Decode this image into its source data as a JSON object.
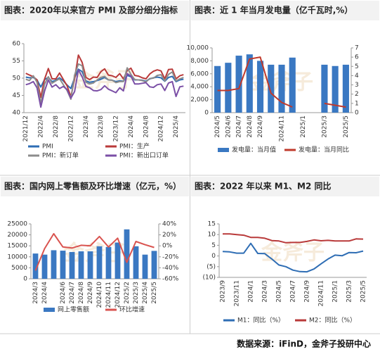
{
  "watermark": "金斧子",
  "source": "数据来源：iFinD，金斧子投研中心",
  "chart_data": [
    {
      "type": "line",
      "title": "图表：2020年以来官方 PMI 及部分细分指标",
      "categories": [
        "2021/12",
        null,
        null,
        null,
        "2022/4",
        null,
        null,
        null,
        "2022/8",
        null,
        null,
        null,
        "2022/12",
        null,
        null,
        null,
        "2023/4",
        null,
        null,
        null,
        "2023/8",
        null,
        null,
        null,
        "2023/12",
        null,
        null,
        null,
        "2024/4",
        null,
        null,
        null,
        "2024/8",
        null,
        null,
        null,
        "2024/12",
        null,
        null,
        null,
        "2025/4",
        null,
        null
      ],
      "series": [
        {
          "name": "PMI",
          "color": "#2e6db4",
          "values": [
            50.3,
            50.1,
            50.2,
            49.5,
            47.4,
            49.6,
            50.2,
            49.0,
            49.4,
            50.1,
            49.2,
            48.0,
            47.0,
            50.1,
            52.6,
            51.9,
            49.2,
            48.8,
            49.0,
            49.3,
            49.7,
            50.2,
            49.5,
            49.4,
            49.0,
            49.2,
            49.1,
            50.8,
            50.4,
            49.5,
            49.5,
            49.4,
            49.1,
            49.8,
            50.1,
            50.3,
            50.1,
            49.1,
            50.2,
            50.5,
            49.0,
            49.5,
            49.7
          ]
        },
        {
          "name": "PMI：生产",
          "color": "#b93a3a",
          "values": [
            51.4,
            50.9,
            50.4,
            49.5,
            44.4,
            49.7,
            52.8,
            49.8,
            49.8,
            51.5,
            49.6,
            47.8,
            44.6,
            49.8,
            56.7,
            54.6,
            50.2,
            49.6,
            50.3,
            50.2,
            51.9,
            52.7,
            50.9,
            50.7,
            50.2,
            51.3,
            49.8,
            52.2,
            52.9,
            50.8,
            50.6,
            50.1,
            49.8,
            51.2,
            52.0,
            52.4,
            52.1,
            49.8,
            52.5,
            52.6,
            49.8,
            50.7,
            51.0
          ]
        },
        {
          "name": "PMI：新订单",
          "color": "#8c8c8c",
          "values": [
            49.7,
            49.3,
            50.7,
            48.8,
            42.6,
            48.2,
            50.4,
            48.5,
            49.2,
            49.8,
            48.1,
            46.4,
            43.9,
            50.9,
            54.1,
            53.6,
            48.8,
            48.3,
            48.6,
            49.5,
            50.2,
            50.5,
            49.5,
            49.4,
            48.7,
            49.0,
            49.0,
            53.0,
            51.1,
            49.6,
            49.5,
            49.3,
            48.9,
            49.9,
            50.0,
            50.8,
            51.0,
            49.2,
            51.1,
            51.8,
            49.2,
            49.8,
            50.2
          ]
        },
        {
          "name": "PMI：新出口订单",
          "color": "#7b4fa6",
          "values": [
            48.1,
            48.4,
            49.0,
            47.2,
            41.6,
            46.2,
            49.5,
            47.4,
            48.1,
            47.0,
            47.6,
            46.7,
            44.2,
            46.1,
            52.4,
            50.4,
            47.6,
            47.2,
            46.4,
            46.3,
            46.7,
            47.8,
            46.8,
            46.3,
            45.8,
            47.2,
            46.3,
            51.3,
            50.6,
            48.3,
            48.3,
            48.5,
            48.7,
            47.5,
            47.3,
            48.1,
            48.3,
            46.4,
            48.6,
            49.0,
            44.7,
            47.5,
            47.7
          ]
        }
      ],
      "ylim": [
        40,
        60
      ],
      "yticks": [
        40,
        45,
        50,
        55,
        60
      ],
      "legend": "bottom"
    },
    {
      "type": "combo",
      "title": "图表：近 1 年当月发电量（亿千瓦时,%）",
      "categories": [
        "2024/5",
        "2024/6",
        "2024/7",
        "2024/8",
        "2024/9",
        null,
        "2024/11",
        null,
        "2025/1",
        null,
        "2025/3",
        null,
        "2025/5"
      ],
      "series": [
        {
          "name": "发电量：当月值",
          "type": "bar",
          "color": "#3a78c2",
          "values": [
            7200,
            7700,
            8800,
            9000,
            8000,
            7400,
            7400,
            8500,
            null,
            null,
            7400,
            7200,
            7400
          ]
        },
        {
          "name": "发电量：当月同比",
          "type": "line",
          "axis": "y2",
          "color": "#c0392b",
          "values": [
            2.4,
            2.4,
            2.6,
            5.8,
            6.0,
            2.1,
            1.1,
            0.6,
            null,
            null,
            1.0,
            0.8,
            0.6
          ]
        }
      ],
      "ylim": [
        0,
        10000
      ],
      "yticks": [
        0,
        {
          "value": 2000,
          "label": "2,000"
        },
        {
          "value": 4000,
          "label": "4,000"
        },
        {
          "value": 6000,
          "label": "6,000"
        },
        {
          "value": 8000,
          "label": "8,000"
        },
        {
          "value": 10000,
          "label": "10,000"
        }
      ],
      "y2lim": [
        0,
        7
      ],
      "y2ticks": [
        0,
        1,
        2,
        3,
        4,
        5,
        6,
        7
      ],
      "legend": "bottom"
    },
    {
      "type": "combo",
      "title": "图表：国内网上零售额及环比增速（亿元，%）",
      "categories": [
        "2024/3",
        "2024/4",
        null,
        "2024/6",
        "2024/7",
        "2024/8",
        "2024/9",
        "2024/10",
        "2024/11",
        "2024/12",
        "2025/2",
        "2025/3",
        "2025/4",
        "2025/5"
      ],
      "series": [
        {
          "name": "网上零售额",
          "type": "bar",
          "color": "#3a78c2",
          "values": [
            11500,
            11000,
            13000,
            12800,
            12200,
            12500,
            12500,
            14800,
            14500,
            16500,
            22500,
            14800,
            11000,
            12700
          ]
        },
        {
          "name": "环比增速",
          "type": "line",
          "axis": "y2",
          "color": "#d9534f",
          "values": [
            -45,
            -5,
            22,
            -2,
            -4,
            1,
            0,
            17,
            -2,
            14,
            -30,
            8,
            2,
            -3
          ]
        }
      ],
      "ylim": [
        0,
        25000
      ],
      "yticks": [
        0,
        5000,
        10000,
        15000,
        20000,
        25000
      ],
      "y2lim": [
        -60,
        40
      ],
      "y2ticks": [
        {
          "value": -60,
          "label": "-60%"
        },
        {
          "value": -40,
          "label": "-40%"
        },
        {
          "value": -20,
          "label": "-20%"
        },
        {
          "value": 0,
          "label": "0%"
        },
        {
          "value": 20,
          "label": "20%"
        },
        {
          "value": 40,
          "label": "40%"
        }
      ],
      "legend": "bottom"
    },
    {
      "type": "line",
      "title": "图表：2022 年以来 M1、M2 同比",
      "categories": [
        "2023/9",
        null,
        "2023/11",
        null,
        "2024/1",
        null,
        "2024/3",
        null,
        "2024/5",
        null,
        "2024/7",
        null,
        "2024/9",
        null,
        "2024/11",
        null,
        "2025/1",
        null,
        "2025/3",
        null,
        "2025/5"
      ],
      "series": [
        {
          "name": "M1：同比（%）",
          "color": "#2e6db4",
          "values": [
            2.1,
            1.9,
            1.3,
            1.3,
            5.9,
            1.2,
            1.1,
            -1.4,
            -4.2,
            -5.0,
            -6.6,
            -7.3,
            -7.4,
            -6.1,
            -3.7,
            -1.4,
            0.4,
            0.1,
            1.6,
            1.5,
            2.3
          ]
        },
        {
          "name": "M2：同比（%）",
          "color": "#b93a3a",
          "values": [
            10.3,
            10.3,
            10.0,
            9.7,
            8.7,
            8.7,
            8.3,
            7.2,
            7.0,
            6.2,
            6.3,
            6.3,
            6.8,
            7.5,
            7.1,
            7.3,
            7.0,
            7.0,
            7.0,
            8.0,
            7.9
          ]
        }
      ],
      "ylim": [
        -10,
        15
      ],
      "yticks": [
        {
          "value": -10,
          "label": "(10)"
        },
        {
          "value": -5,
          "label": "(5)"
        },
        0,
        5,
        10,
        15
      ],
      "legend": "bottom"
    }
  ]
}
